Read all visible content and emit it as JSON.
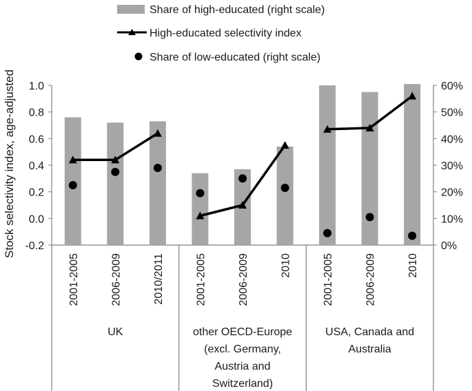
{
  "chart_data": {
    "type": "bar",
    "ylabel": "Stock selectivity index, age-adjusted",
    "ylim": [
      -0.2,
      1.0
    ],
    "yticks": [
      "-0.2",
      "0.0",
      "0.2",
      "0.4",
      "0.6",
      "0.8",
      "1.0"
    ],
    "y2lim": [
      0,
      60
    ],
    "y2ticks": [
      "0%",
      "10%",
      "20%",
      "30%",
      "40%",
      "50%",
      "60%"
    ],
    "grid": false,
    "legend_position": "top",
    "categories": [
      "2001-2005",
      "2006-2009",
      "2010/2011",
      "2001-2005",
      "2006-2009",
      "2010",
      "2001-2005",
      "2006-2009",
      "2010"
    ],
    "groups": [
      {
        "label_lines": [
          "UK"
        ],
        "count": 3
      },
      {
        "label_lines": [
          "other OECD-Europe",
          "(excl. Germany,",
          "Austria and",
          "Switzerland)"
        ],
        "count": 3
      },
      {
        "label_lines": [
          "USA, Canada and",
          "Australia"
        ],
        "count": 3
      }
    ],
    "series": [
      {
        "name": "Share of high-educated (right scale)",
        "type": "bar",
        "axis": "right",
        "values": [
          48,
          46,
          46.5,
          27,
          28.5,
          37,
          60,
          57.5,
          60.5
        ]
      },
      {
        "name": "High-educated selectivity index",
        "type": "line",
        "axis": "left",
        "values": [
          0.44,
          0.44,
          0.64,
          0.02,
          0.1,
          0.55,
          0.67,
          0.68,
          0.92
        ]
      },
      {
        "name": "Share of low-educated (right scale)",
        "type": "scatter",
        "axis": "right",
        "values": [
          22.5,
          27.5,
          29,
          19.5,
          25,
          21.5,
          4.5,
          10.5,
          3.5
        ]
      }
    ],
    "colors": {
      "bar": "#a6a6a6",
      "line": "#000000",
      "dot": "#000000",
      "axis": "#808080"
    }
  }
}
